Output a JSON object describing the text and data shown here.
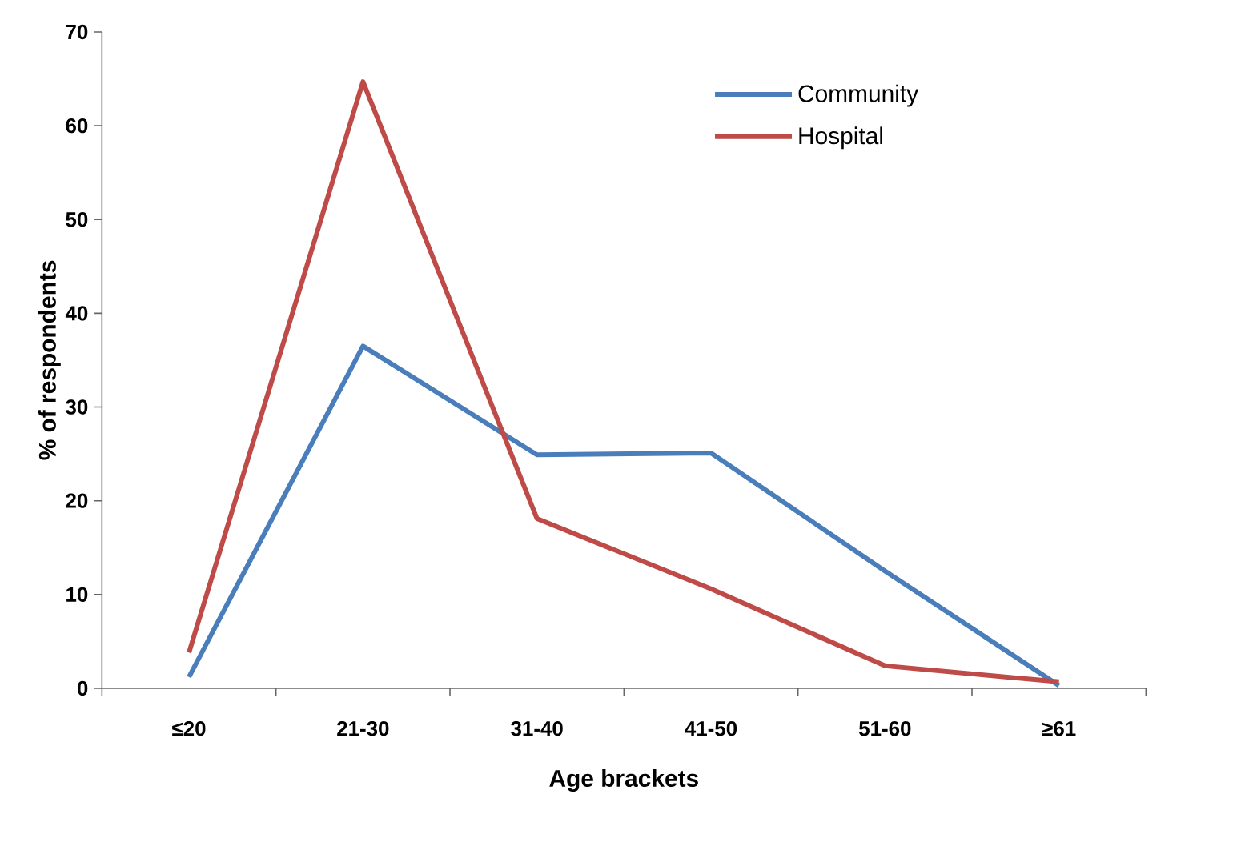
{
  "chart_data": {
    "type": "line",
    "xlabel": "Age brackets",
    "ylabel": "% of respondents",
    "categories": [
      "≤20",
      "21-30",
      "31-40",
      "41-50",
      "51-60",
      "≥61"
    ],
    "series": [
      {
        "name": "Community",
        "color": "#4a7ebb",
        "values": [
          1.2,
          36.5,
          24.9,
          25.1,
          12.5,
          0.3
        ]
      },
      {
        "name": "Hospital",
        "color": "#be4b48",
        "values": [
          3.8,
          64.7,
          18.1,
          10.6,
          2.4,
          0.7
        ]
      }
    ],
    "ylim": [
      0,
      70
    ],
    "yticks": [
      0,
      10,
      20,
      30,
      40,
      50,
      60,
      70
    ],
    "legend": "top right",
    "grid": false,
    "marker": "none",
    "line_style": "solid"
  }
}
